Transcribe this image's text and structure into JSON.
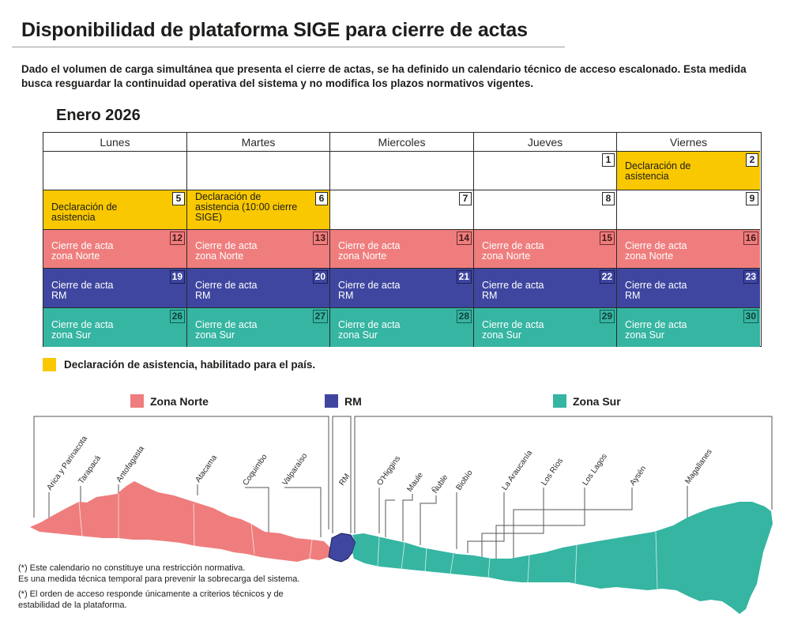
{
  "title": "Disponibilidad de plataforma SIGE para cierre de actas",
  "intro": "Dado el volumen de carga simultánea que presenta el cierre de actas, se ha definido un calendario técnico de acceso escalonado. Esta medida busca resguardar la continuidad operativa del sistema y no modifica los plazos normativos vigentes.",
  "month": "Enero 2026",
  "colors": {
    "yellow": "#f9c800",
    "norte": "#ef7d7d",
    "rm": "#3f46a0",
    "sur": "#35b5a2"
  },
  "calendar": {
    "days": [
      "Lunes",
      "Martes",
      "Miercoles",
      "Jueves",
      "Viernes"
    ],
    "rows": [
      [
        {
          "day": "",
          "label": "",
          "color": "white"
        },
        {
          "day": "",
          "label": "",
          "color": "white"
        },
        {
          "day": "",
          "label": "",
          "color": "white"
        },
        {
          "day": "1",
          "label": "",
          "color": "white"
        },
        {
          "day": "2",
          "label": "Declaración de\nasistencia",
          "color": "yellow"
        }
      ],
      [
        {
          "day": "5",
          "label": "Declaración de\nasistencia",
          "color": "yellow"
        },
        {
          "day": "6",
          "label": "Declaración de\nasistencia (10:00 cierre SIGE)",
          "color": "yellow"
        },
        {
          "day": "7",
          "label": "",
          "color": "white"
        },
        {
          "day": "8",
          "label": "",
          "color": "white"
        },
        {
          "day": "9",
          "label": "",
          "color": "white"
        }
      ],
      [
        {
          "day": "12",
          "label": "Cierre de acta\nzona Norte",
          "color": "norte"
        },
        {
          "day": "13",
          "label": "Cierre de acta\nzona Norte",
          "color": "norte"
        },
        {
          "day": "14",
          "label": "Cierre de acta\nzona Norte",
          "color": "norte"
        },
        {
          "day": "15",
          "label": "Cierre de acta\nzona Norte",
          "color": "norte"
        },
        {
          "day": "16",
          "label": "Cierre de acta\nzona Norte",
          "color": "norte"
        }
      ],
      [
        {
          "day": "19",
          "label": "Cierre de acta\nRM",
          "color": "rm"
        },
        {
          "day": "20",
          "label": "Cierre de acta\nRM",
          "color": "rm"
        },
        {
          "day": "21",
          "label": "Cierre de acta\nRM",
          "color": "rm"
        },
        {
          "day": "22",
          "label": "Cierre de acta\nRM",
          "color": "rm"
        },
        {
          "day": "23",
          "label": "Cierre de acta\nRM",
          "color": "rm"
        }
      ],
      [
        {
          "day": "26",
          "label": "Cierre de acta\nzona Sur",
          "color": "sur"
        },
        {
          "day": "27",
          "label": "Cierre de acta\nzona Sur",
          "color": "sur"
        },
        {
          "day": "28",
          "label": "Cierre de acta\nzona Sur",
          "color": "sur"
        },
        {
          "day": "29",
          "label": "Cierre de acta\nzona Sur",
          "color": "sur"
        },
        {
          "day": "30",
          "label": "Cierre de acta\nzona Sur",
          "color": "sur"
        }
      ]
    ]
  },
  "legend_asistencia": "Declaración de asistencia, habilitado para el país.",
  "zones": [
    {
      "name": "Zona Norte",
      "color": "norte"
    },
    {
      "name": "RM",
      "color": "rm"
    },
    {
      "name": "Zona Sur",
      "color": "sur"
    }
  ],
  "regions": {
    "norte": [
      "Arica y Parinacota",
      "Tarapacá",
      "Antofagasta",
      "Atacama",
      "Coquimbo",
      "Valparaíso"
    ],
    "rm": [
      "RM"
    ],
    "sur": [
      "O'Higgins",
      "Maule",
      "Ñuble",
      "Biobío",
      "La Araucanía",
      "Los Ríos",
      "Los Lagos",
      "Aysén",
      "Magallanes"
    ]
  },
  "notes": [
    "(*) Este calendario no constituye una restricción normativa.\nEs una medida técnica temporal para prevenir la sobrecarga del sistema.",
    "(*) El orden de acceso responde únicamente a criterios técnicos y de\nestabilidad de la plataforma."
  ]
}
